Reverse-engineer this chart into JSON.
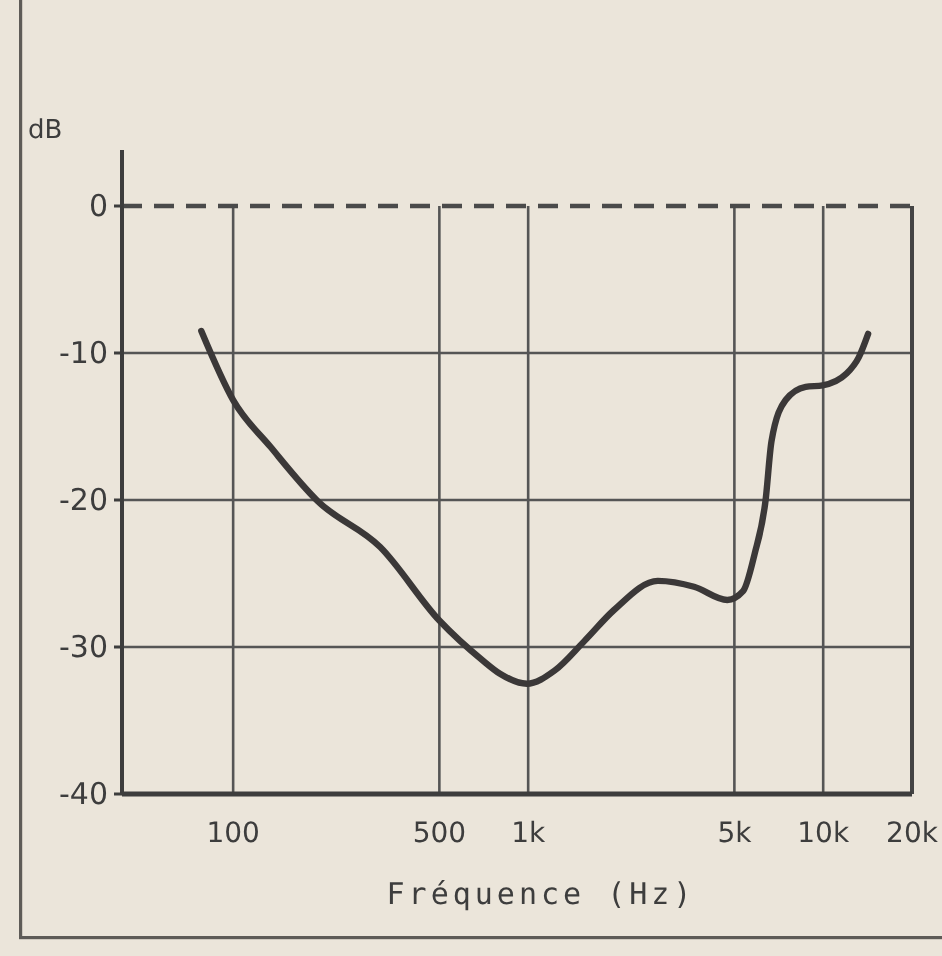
{
  "chart_data": {
    "type": "line",
    "xlabel": "Fréquence (Hz)",
    "ylabel": "dB",
    "x": [
      78,
      100,
      134,
      194,
      315,
      500,
      700,
      800,
      990,
      1230,
      1550,
      1950,
      2750,
      3650,
      4730,
      5350,
      5850,
      6380,
      6680,
      7460,
      8720,
      9960,
      12000,
      13200,
      14200
    ],
    "series": [
      {
        "color": "#3b3838",
        "values": [
          -8.5,
          -13.2,
          -16.4,
          -20.1,
          -23.2,
          -28.2,
          -30.9,
          -31.8,
          -32.5,
          -31.6,
          -29.6,
          -27.5,
          -25.5,
          -25.9,
          -26.8,
          -26.2,
          -23.7,
          -20.0,
          -16.0,
          -13.2,
          -12.3,
          -12.2,
          -11.4,
          -10.3,
          -8.7
        ]
      }
    ],
    "log": "x",
    "xlim": [
      42,
      20000
    ],
    "ylim": [
      -40,
      0
    ],
    "xticks": [
      100,
      500,
      {
        "value": 1000,
        "label": "1k"
      },
      {
        "value": 5000,
        "label": "5k"
      },
      {
        "value": 10000,
        "label": "10k"
      },
      {
        "value": 20000,
        "label": "20k"
      }
    ],
    "yticks": [
      -40,
      -30,
      -20,
      -10,
      0
    ],
    "grid": true,
    "line_style": "solid",
    "ref_lines": [
      {
        "axis": "y",
        "value": 0,
        "line_style": "dashed",
        "color": "#4a4a4a"
      }
    ]
  }
}
